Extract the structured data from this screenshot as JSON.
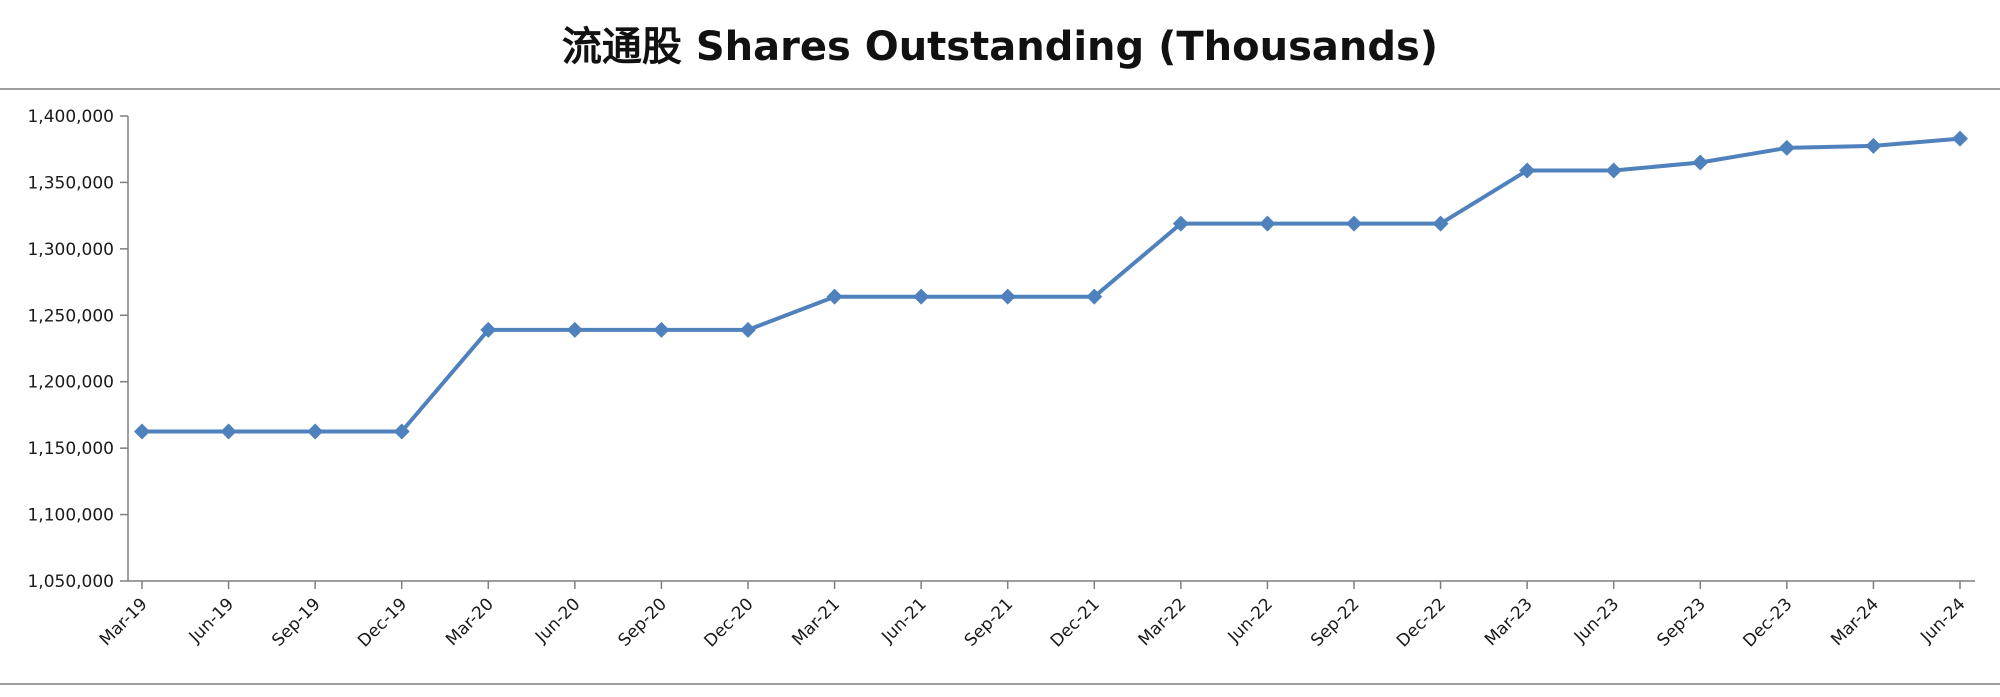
{
  "chart_data": {
    "type": "line",
    "title": "流通股 Shares Outstanding (Thousands)",
    "x": [
      "Mar-19",
      "Jun-19",
      "Sep-19",
      "Dec-19",
      "Mar-20",
      "Jun-20",
      "Sep-20",
      "Dec-20",
      "Mar-21",
      "Jun-21",
      "Sep-21",
      "Dec-21",
      "Mar-22",
      "Jun-22",
      "Sep-22",
      "Dec-22",
      "Mar-23",
      "Jun-23",
      "Sep-23",
      "Dec-23",
      "Mar-24",
      "Jun-24"
    ],
    "series": [
      {
        "values": [
          1162500,
          1162500,
          1162500,
          1162500,
          1239000,
          1239000,
          1239000,
          1239000,
          1264000,
          1264000,
          1264000,
          1264000,
          1319000,
          1319000,
          1319000,
          1319000,
          1359000,
          1359000,
          1365000,
          1376000,
          1377500,
          1383000
        ],
        "color": "#4F81BD",
        "marker": "diamond"
      }
    ],
    "ylim": [
      1050000,
      1400000
    ],
    "yticks": [
      1050000,
      1100000,
      1150000,
      1200000,
      1250000,
      1300000,
      1350000,
      1400000
    ],
    "ytick_labels": [
      "1,050,000",
      "1,100,000",
      "1,150,000",
      "1,200,000",
      "1,250,000",
      "1,300,000",
      "1,350,000",
      "1,400,000"
    ],
    "grid": false,
    "legend": "none"
  }
}
